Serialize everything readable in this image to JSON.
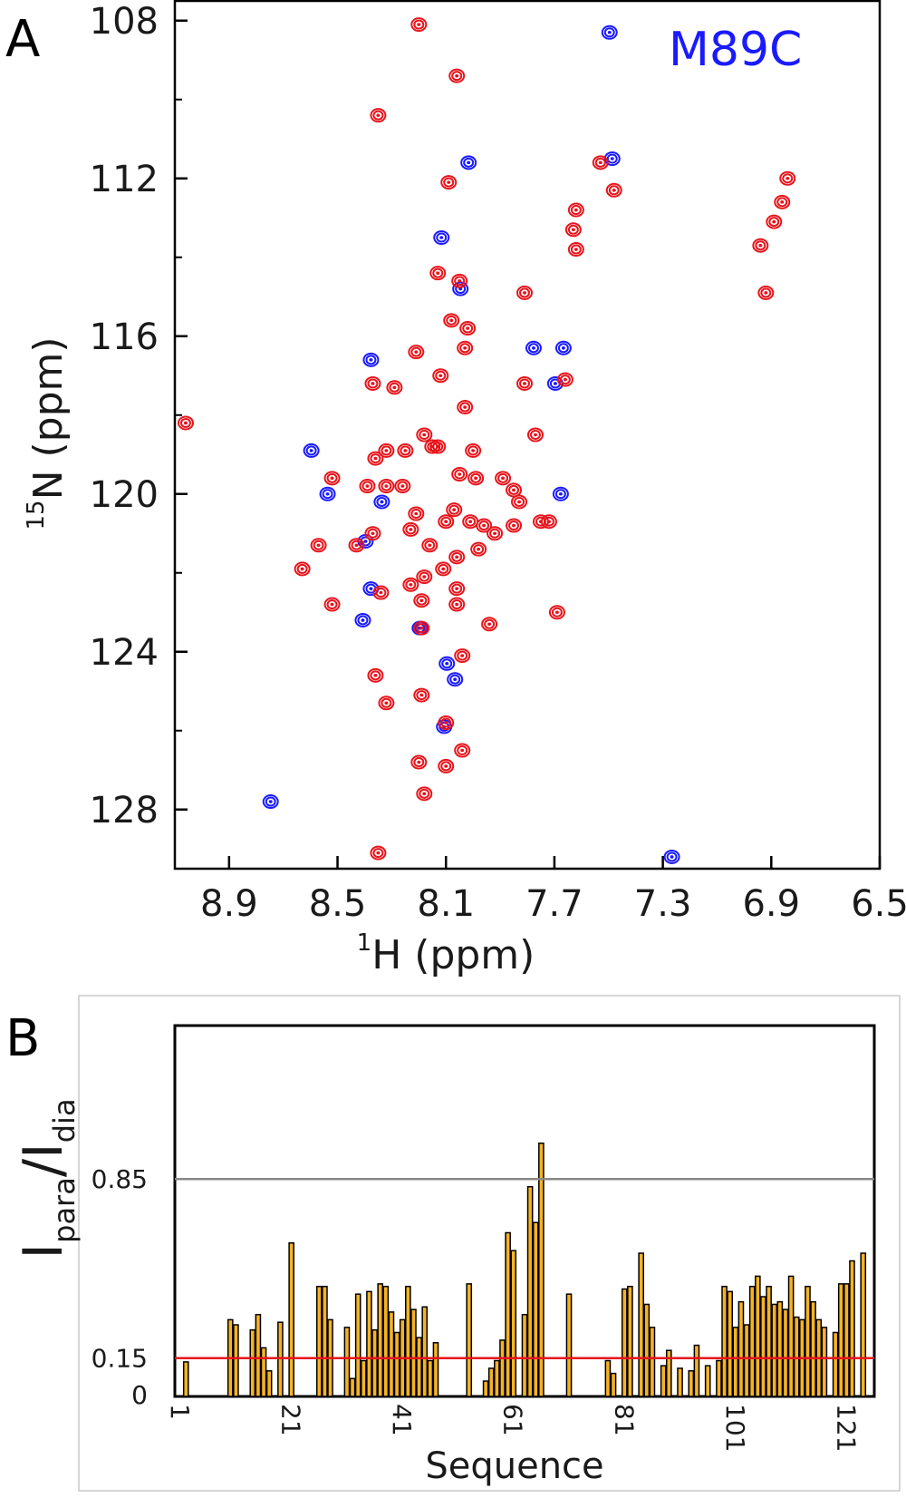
{
  "panels": {
    "a_label": "A",
    "b_label": "B"
  },
  "chart_data": [
    {
      "type": "scatter",
      "panel": "A",
      "title": "M89C",
      "title_color": "#1a1aff",
      "xlabel_sup": "1",
      "xlabel": "H (ppm)",
      "ylabel_sup": "15",
      "ylabel": "N (ppm)",
      "xlim": [
        9.1,
        6.5
      ],
      "ylim": [
        107.5,
        129.5
      ],
      "x_ticks": [
        "8.9",
        "8.5",
        "8.1",
        "7.7",
        "7.3",
        "6.9",
        "6.5"
      ],
      "y_ticks": [
        "108",
        "112",
        "116",
        "120",
        "124",
        "128"
      ],
      "colors": {
        "red": "#e8141b",
        "blue": "#1a1aff"
      },
      "series": [
        {
          "color": "red",
          "points": [
            [
              8.2,
              108.1
            ],
            [
              8.06,
              109.4
            ],
            [
              8.35,
              110.4
            ],
            [
              8.09,
              112.1
            ],
            [
              7.53,
              111.6
            ],
            [
              7.48,
              112.3
            ],
            [
              7.62,
              112.8
            ],
            [
              7.63,
              113.3
            ],
            [
              7.62,
              113.8
            ],
            [
              6.84,
              112.0
            ],
            [
              6.86,
              112.6
            ],
            [
              6.89,
              113.1
            ],
            [
              6.94,
              113.7
            ],
            [
              8.13,
              114.4
            ],
            [
              8.05,
              114.6
            ],
            [
              7.81,
              114.9
            ],
            [
              6.92,
              114.9
            ],
            [
              8.08,
              115.6
            ],
            [
              8.02,
              115.8
            ],
            [
              8.21,
              116.4
            ],
            [
              8.03,
              116.3
            ],
            [
              8.12,
              117.0
            ],
            [
              7.81,
              117.2
            ],
            [
              7.66,
              117.1
            ],
            [
              8.29,
              117.3
            ],
            [
              8.37,
              117.2
            ],
            [
              8.03,
              117.8
            ],
            [
              9.06,
              118.2
            ],
            [
              8.18,
              118.5
            ],
            [
              8.15,
              118.8
            ],
            [
              8.13,
              118.8
            ],
            [
              8.25,
              118.9
            ],
            [
              8.0,
              118.9
            ],
            [
              7.77,
              118.5
            ],
            [
              8.32,
              118.9
            ],
            [
              8.36,
              119.1
            ],
            [
              8.52,
              119.6
            ],
            [
              8.39,
              119.8
            ],
            [
              8.32,
              119.8
            ],
            [
              8.26,
              119.8
            ],
            [
              8.05,
              119.5
            ],
            [
              7.99,
              119.6
            ],
            [
              7.89,
              119.6
            ],
            [
              7.85,
              119.9
            ],
            [
              7.83,
              120.2
            ],
            [
              8.21,
              120.5
            ],
            [
              8.1,
              120.7
            ],
            [
              8.07,
              120.4
            ],
            [
              8.01,
              120.7
            ],
            [
              7.96,
              120.8
            ],
            [
              7.92,
              121.0
            ],
            [
              7.85,
              120.8
            ],
            [
              7.72,
              120.7
            ],
            [
              7.75,
              120.7
            ],
            [
              8.23,
              120.9
            ],
            [
              8.37,
              121.0
            ],
            [
              8.43,
              121.3
            ],
            [
              8.57,
              121.3
            ],
            [
              8.63,
              121.9
            ],
            [
              8.16,
              121.3
            ],
            [
              8.06,
              121.6
            ],
            [
              7.98,
              121.4
            ],
            [
              8.11,
              121.9
            ],
            [
              8.18,
              122.1
            ],
            [
              8.23,
              122.3
            ],
            [
              8.34,
              122.5
            ],
            [
              8.19,
              122.7
            ],
            [
              8.06,
              122.4
            ],
            [
              8.06,
              122.8
            ],
            [
              7.94,
              123.3
            ],
            [
              7.69,
              123.0
            ],
            [
              8.52,
              122.8
            ],
            [
              8.19,
              123.4
            ],
            [
              8.04,
              124.1
            ],
            [
              8.36,
              124.6
            ],
            [
              8.32,
              125.3
            ],
            [
              8.19,
              125.1
            ],
            [
              8.1,
              125.8
            ],
            [
              8.04,
              126.5
            ],
            [
              8.2,
              126.8
            ],
            [
              8.1,
              126.9
            ],
            [
              8.18,
              127.6
            ],
            [
              8.35,
              129.1
            ]
          ]
        },
        {
          "color": "blue",
          "points": [
            [
              8.01,
              111.6
            ],
            [
              7.48,
              111.5
            ],
            [
              8.11,
              113.5
            ],
            [
              8.04,
              114.8
            ],
            [
              7.77,
              116.3
            ],
            [
              7.66,
              116.3
            ],
            [
              7.69,
              117.2
            ],
            [
              8.37,
              116.6
            ],
            [
              8.59,
              118.9
            ],
            [
              8.53,
              120.0
            ],
            [
              8.33,
              120.2
            ],
            [
              7.67,
              120.0
            ],
            [
              8.39,
              121.2
            ],
            [
              8.37,
              122.4
            ],
            [
              8.4,
              123.2
            ],
            [
              8.19,
              123.4
            ],
            [
              8.09,
              124.3
            ],
            [
              8.06,
              124.7
            ],
            [
              8.1,
              125.9
            ],
            [
              7.49,
              108.3
            ],
            [
              8.74,
              127.8
            ],
            [
              7.26,
              129.2
            ]
          ]
        }
      ]
    },
    {
      "type": "bar",
      "panel": "B",
      "xlabel": "Sequence",
      "ylabel_main": "I",
      "ylabel_sub1": "para",
      "ylabel_mid": "/I",
      "ylabel_sub2": "dia",
      "xlim": [
        0,
        126
      ],
      "ylim": [
        0,
        1.45
      ],
      "x_ticks": [
        "1",
        "21",
        "41",
        "61",
        "81",
        "101",
        "121"
      ],
      "y_tick_labels": [
        "0",
        "0.15",
        "0.85"
      ],
      "y_tick_values": [
        0,
        0.15,
        0.85
      ],
      "reference_lines": [
        {
          "value": 0.85,
          "color": "#888888"
        },
        {
          "value": 0.15,
          "color": "#e8141b"
        }
      ],
      "bar_color": "#f5b324",
      "values": [
        [
          2,
          0.135
        ],
        [
          10,
          0.3
        ],
        [
          11,
          0.28
        ],
        [
          14,
          0.26
        ],
        [
          15,
          0.32
        ],
        [
          16,
          0.19
        ],
        [
          17,
          0.1
        ],
        [
          19,
          0.29
        ],
        [
          21,
          0.6
        ],
        [
          26,
          0.43
        ],
        [
          27,
          0.43
        ],
        [
          28,
          0.3
        ],
        [
          31,
          0.27
        ],
        [
          32,
          0.07
        ],
        [
          33,
          0.4
        ],
        [
          34,
          0.14
        ],
        [
          35,
          0.41
        ],
        [
          36,
          0.26
        ],
        [
          37,
          0.44
        ],
        [
          38,
          0.43
        ],
        [
          39,
          0.33
        ],
        [
          40,
          0.25
        ],
        [
          41,
          0.3
        ],
        [
          42,
          0.43
        ],
        [
          43,
          0.34
        ],
        [
          44,
          0.23
        ],
        [
          45,
          0.35
        ],
        [
          46,
          0.14
        ],
        [
          47,
          0.21
        ],
        [
          53,
          0.44
        ],
        [
          56,
          0.06
        ],
        [
          57,
          0.11
        ],
        [
          58,
          0.14
        ],
        [
          59,
          0.22
        ],
        [
          60,
          0.64
        ],
        [
          61,
          0.57
        ],
        [
          63,
          0.32
        ],
        [
          64,
          0.82
        ],
        [
          65,
          0.68
        ],
        [
          66,
          0.99
        ],
        [
          71,
          0.4
        ],
        [
          78,
          0.14
        ],
        [
          79,
          0.09
        ],
        [
          81,
          0.42
        ],
        [
          82,
          0.43
        ],
        [
          84,
          0.56
        ],
        [
          85,
          0.36
        ],
        [
          86,
          0.27
        ],
        [
          88,
          0.12
        ],
        [
          89,
          0.18
        ],
        [
          91,
          0.11
        ],
        [
          93,
          0.1
        ],
        [
          94,
          0.2
        ],
        [
          96,
          0.12
        ],
        [
          98,
          0.14
        ],
        [
          99,
          0.43
        ],
        [
          100,
          0.41
        ],
        [
          101,
          0.27
        ],
        [
          102,
          0.37
        ],
        [
          103,
          0.28
        ],
        [
          104,
          0.43
        ],
        [
          105,
          0.47
        ],
        [
          106,
          0.39
        ],
        [
          107,
          0.43
        ],
        [
          108,
          0.36
        ],
        [
          109,
          0.37
        ],
        [
          110,
          0.34
        ],
        [
          111,
          0.47
        ],
        [
          112,
          0.31
        ],
        [
          113,
          0.3
        ],
        [
          114,
          0.43
        ],
        [
          115,
          0.37
        ],
        [
          116,
          0.3
        ],
        [
          117,
          0.27
        ],
        [
          119,
          0.25
        ],
        [
          120,
          0.44
        ],
        [
          121,
          0.44
        ],
        [
          122,
          0.53
        ],
        [
          124,
          0.56
        ]
      ]
    }
  ]
}
